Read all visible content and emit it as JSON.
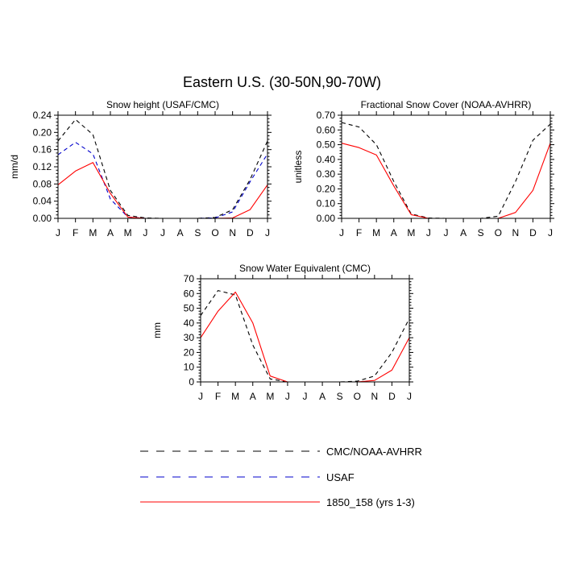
{
  "figure_title": "Eastern U.S. (30-50N,90-70W)",
  "legend": [
    {
      "label": "CMC/NOAA-AVHRR",
      "color": "#000000",
      "dash": "dashed"
    },
    {
      "label": "USAF",
      "color": "#0000cc",
      "dash": "dashed"
    },
    {
      "label": "1850_158 (yrs 1-3)",
      "color": "#ff0000",
      "dash": "solid"
    }
  ],
  "chart_data": [
    {
      "type": "line",
      "title": "Snow height (USAF/CMC)",
      "ylabel": "mm/d",
      "xlabel": "",
      "categories": [
        "J",
        "F",
        "M",
        "A",
        "M",
        "J",
        "J",
        "A",
        "S",
        "O",
        "N",
        "D",
        "J"
      ],
      "ylim": [
        0,
        0.24
      ],
      "yticks": [
        0,
        0.04,
        0.08,
        0.12,
        0.16,
        0.2,
        0.24
      ],
      "ytick_labels": [
        "0.00",
        "0.04",
        "0.08",
        "0.12",
        "0.16",
        "0.20",
        "0.24"
      ],
      "series": [
        {
          "legend_index": 0,
          "color": "#000000",
          "dash": "dashed",
          "values": [
            0.18,
            0.23,
            0.195,
            0.065,
            0.007,
            0.001,
            0.0,
            0.0,
            0.0,
            0.002,
            0.02,
            0.09,
            0.18
          ]
        },
        {
          "legend_index": 1,
          "color": "#0000cc",
          "dash": "dashed",
          "values": [
            0.148,
            0.177,
            0.15,
            0.045,
            0.003,
            0.0,
            0.0,
            0.0,
            0.0,
            0.001,
            0.015,
            0.085,
            0.15
          ]
        },
        {
          "legend_index": 2,
          "color": "#ff0000",
          "dash": "solid",
          "values": [
            0.078,
            0.11,
            0.13,
            0.058,
            0.003,
            0.0,
            0.0,
            0.0,
            0.0,
            0.0,
            0.001,
            0.02,
            0.078
          ]
        }
      ]
    },
    {
      "type": "line",
      "title": "Fractional Snow Cover (NOAA-AVHRR)",
      "ylabel": "unitless",
      "xlabel": "",
      "categories": [
        "J",
        "F",
        "M",
        "A",
        "M",
        "J",
        "J",
        "A",
        "S",
        "O",
        "N",
        "D",
        "J"
      ],
      "ylim": [
        0,
        0.7
      ],
      "yticks": [
        0,
        0.1,
        0.2,
        0.3,
        0.4,
        0.5,
        0.6,
        0.7
      ],
      "ytick_labels": [
        "0.00",
        "0.10",
        "0.20",
        "0.30",
        "0.40",
        "0.50",
        "0.60",
        "0.70"
      ],
      "series": [
        {
          "legend_index": 0,
          "color": "#000000",
          "dash": "dashed",
          "values": [
            0.65,
            0.62,
            0.5,
            0.25,
            0.03,
            0.002,
            0.0,
            0.0,
            0.0,
            0.015,
            0.25,
            0.53,
            0.64
          ]
        },
        {
          "legend_index": 2,
          "color": "#ff0000",
          "dash": "solid",
          "values": [
            0.51,
            0.48,
            0.43,
            0.22,
            0.025,
            0.0,
            0.0,
            0.0,
            0.0,
            0.0,
            0.04,
            0.19,
            0.51
          ]
        }
      ]
    },
    {
      "type": "line",
      "title": "Snow Water Equivalent (CMC)",
      "ylabel": "mm",
      "xlabel": "",
      "categories": [
        "J",
        "F",
        "M",
        "A",
        "M",
        "J",
        "J",
        "A",
        "S",
        "O",
        "N",
        "D",
        "J"
      ],
      "ylim": [
        0,
        70
      ],
      "yticks": [
        0,
        10,
        20,
        30,
        40,
        50,
        60,
        70
      ],
      "ytick_labels": [
        "0",
        "10",
        "20",
        "30",
        "40",
        "50",
        "60",
        "70"
      ],
      "series": [
        {
          "legend_index": 0,
          "color": "#000000",
          "dash": "dashed",
          "values": [
            45,
            62,
            59,
            25,
            2,
            0,
            0,
            0,
            0,
            0.5,
            4,
            20,
            43
          ]
        },
        {
          "legend_index": 2,
          "color": "#ff0000",
          "dash": "solid",
          "values": [
            30,
            48,
            61,
            40,
            4,
            0,
            0,
            0,
            0,
            0,
            1,
            8,
            30
          ]
        }
      ]
    }
  ]
}
